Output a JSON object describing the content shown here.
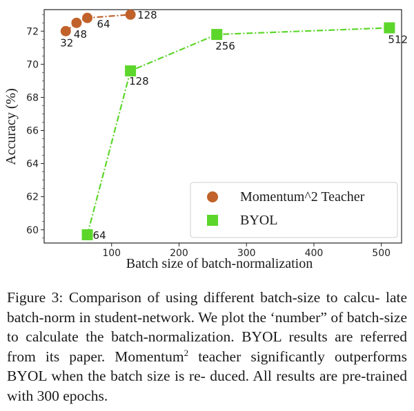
{
  "chart_data": {
    "type": "line",
    "xlabel": "Batch size of batch-normalization",
    "ylabel": "Accuracy (%)",
    "xlim": [
      0,
      530
    ],
    "ylim": [
      59.2,
      73.3
    ],
    "xticks": [
      100,
      200,
      300,
      400,
      500
    ],
    "yticks": [
      60,
      62,
      64,
      66,
      68,
      70,
      72
    ],
    "grid": false,
    "legend": "bottom-right",
    "series": [
      {
        "name": "Momentum^2 Teacher",
        "color": "#c0622a",
        "marker": "circle",
        "x": [
          32,
          48,
          64,
          128
        ],
        "y": [
          72.0,
          72.5,
          72.8,
          73.0
        ],
        "labels": [
          "32",
          "48",
          "64",
          "128"
        ]
      },
      {
        "name": "BYOL",
        "color": "#5cd62a",
        "marker": "square",
        "x": [
          64,
          128,
          256,
          512
        ],
        "y": [
          59.7,
          69.6,
          71.8,
          72.2
        ],
        "labels": [
          "64",
          "128",
          "256",
          "512"
        ]
      }
    ]
  },
  "caption": {
    "prefix": "Figure 3: Comparison of using different batch-size to calcu- late batch-norm in student-network. We plot the ‘number” of batch-size to calculate the batch-normalization. BYOL results are referred from its paper. Momentum",
    "sup": "2",
    "suffix": " teacher significantly outperforms BYOL when the batch size is re- duced. All results are pre-trained with 300 epochs."
  }
}
